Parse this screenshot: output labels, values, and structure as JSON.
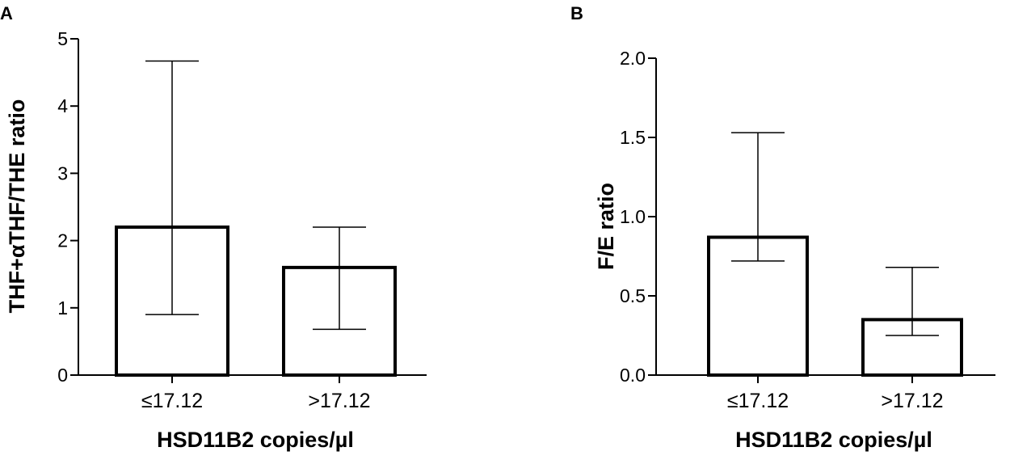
{
  "chart_data": [
    {
      "type": "bar",
      "panel_label": "A",
      "categories": [
        "≤17.12",
        ">17.12"
      ],
      "values": [
        2.2,
        1.6
      ],
      "error_low": [
        0.9,
        0.68
      ],
      "error_high": [
        4.67,
        2.2
      ],
      "xlabel": "HSD11B2 copies/µl",
      "ylabel": "THF+αTHF/THE ratio",
      "ylim": [
        0,
        5
      ],
      "yticks": [
        "0",
        "1",
        "2",
        "3",
        "4",
        "5"
      ],
      "ytick_values": [
        0,
        1,
        2,
        3,
        4,
        5
      ],
      "grid": false,
      "bar_fill": "#ffffff",
      "bar_stroke": "#000000"
    },
    {
      "type": "bar",
      "panel_label": "B",
      "categories": [
        "≤17.12",
        ">17.12"
      ],
      "values": [
        0.87,
        0.35
      ],
      "error_low": [
        0.72,
        0.25
      ],
      "error_high": [
        1.53,
        0.68
      ],
      "xlabel": "HSD11B2 copies/µl",
      "ylabel": "F/E ratio",
      "ylim": [
        0,
        2.0
      ],
      "yticks": [
        "0.0",
        "0.5",
        "1.0",
        "1.5",
        "2.0"
      ],
      "ytick_values": [
        0,
        0.5,
        1.0,
        1.5,
        2.0
      ],
      "grid": false,
      "bar_fill": "#ffffff",
      "bar_stroke": "#000000"
    }
  ]
}
